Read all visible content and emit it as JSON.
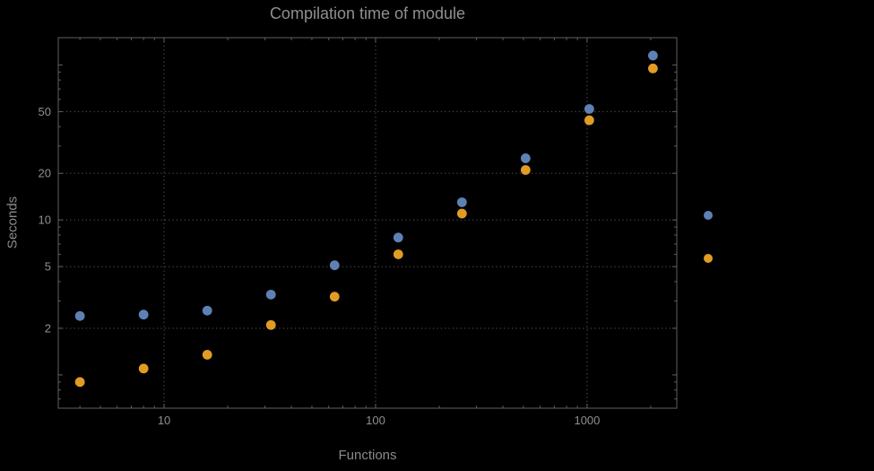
{
  "chart_data": {
    "type": "scatter",
    "title": "Compilation time of module",
    "xlabel": "Functions",
    "ylabel": "Seconds",
    "xscale": "log",
    "yscale": "log",
    "xlim": [
      3.16,
      2655
    ],
    "ylim": [
      0.61,
      150
    ],
    "x_ticks": [
      10,
      100,
      1000
    ],
    "y_ticks": [
      2,
      5,
      10,
      20,
      50
    ],
    "grid": "dotted",
    "legend_position": "right-outside",
    "legend_labels_visible": false,
    "x": [
      4,
      8,
      16,
      32,
      64,
      128,
      256,
      512,
      1024,
      2048
    ],
    "series": [
      {
        "name": "series-blue",
        "color": "#5e81b5",
        "values": [
          2.4,
          2.45,
          2.6,
          3.3,
          5.1,
          7.7,
          13,
          25,
          52,
          115
        ]
      },
      {
        "name": "series-orange",
        "color": "#e19c24",
        "values": [
          0.9,
          1.1,
          1.35,
          2.1,
          3.2,
          6.0,
          11,
          21,
          44,
          95
        ]
      }
    ]
  },
  "colors": {
    "background": "#000000",
    "title": "#8f8f8f",
    "axis_label": "#8a8a8a",
    "tick_label": "#8f8f8f",
    "frame": "#616161",
    "tick": "#616161",
    "grid": "#4e4e4e"
  }
}
